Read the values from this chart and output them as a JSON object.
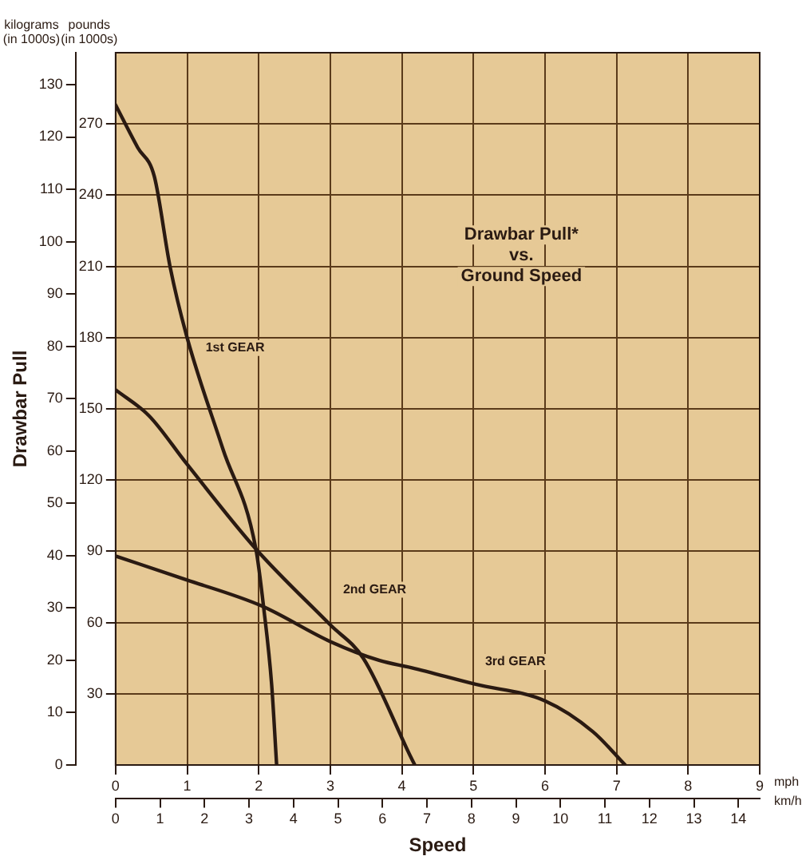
{
  "chart_data": {
    "type": "line",
    "title": "Drawbar Pull*\nvs.\nGround Speed",
    "xlabel": "Speed",
    "ylabel": "Drawbar Pull",
    "annotations": [
      "kilograms\n(in 1000s)",
      "pounds\n(in 1000s)",
      "mph",
      "km/h"
    ],
    "xlim": [
      0,
      9
    ],
    "xticks": [
      0,
      1,
      2,
      3,
      4,
      5,
      6,
      7,
      8,
      9
    ],
    "x2lim": [
      0,
      14.48
    ],
    "x2ticks": [
      0,
      1,
      2,
      3,
      4,
      5,
      6,
      7,
      8,
      9,
      10,
      11,
      12,
      13,
      14
    ],
    "ylim": [
      0,
      136.1
    ],
    "yticks": [
      0,
      10,
      20,
      30,
      40,
      50,
      60,
      70,
      80,
      90,
      100,
      110,
      120,
      130
    ],
    "y2lim": [
      0,
      300
    ],
    "y2ticks": [
      30,
      60,
      90,
      120,
      150,
      180,
      210,
      240,
      270
    ],
    "grid": true,
    "legend": false,
    "marker": "none",
    "line_style": "solid",
    "series": [
      {
        "name": "1st GEAR",
        "color": "#2a1a12",
        "axis": "y2",
        "x": [
          0,
          0.31,
          0.54,
          0.76,
          0.99,
          1.5,
          1.96,
          2.07,
          2.18,
          2.25
        ],
        "values": [
          278,
          260,
          248,
          210,
          181,
          133,
          91,
          66,
          34,
          0
        ]
      },
      {
        "name": "2nd GEAR",
        "color": "#2a1a12",
        "axis": "y2",
        "x": [
          0,
          0.47,
          0.99,
          1.96,
          3.0,
          3.46,
          4.13,
          4.18
        ],
        "values": [
          158,
          147,
          127,
          91,
          59,
          45,
          3,
          0
        ]
      },
      {
        "name": "3rd GEAR",
        "color": "#2a1a12",
        "axis": "y2",
        "x": [
          0,
          0.99,
          2.04,
          3.0,
          3.69,
          4.13,
          5.03,
          6.0,
          6.67,
          7.12
        ],
        "values": [
          88,
          78,
          67,
          52,
          44,
          41,
          34,
          27,
          14,
          0
        ]
      }
    ]
  }
}
